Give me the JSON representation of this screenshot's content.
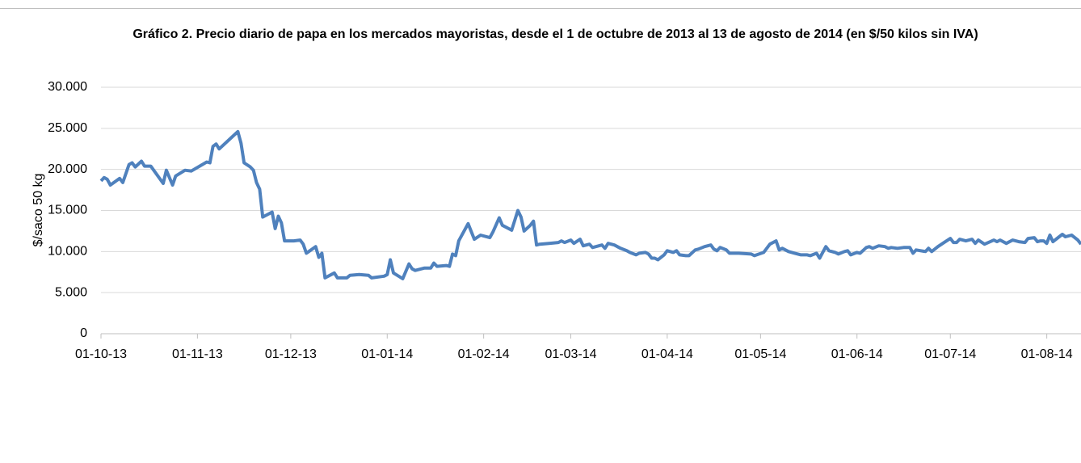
{
  "chart_data": {
    "type": "line",
    "title": "Gráfico 2. Precio diario de papa en los mercados mayoristas, desde el 1 de octubre de 2013 al 13 de agosto de 2014 (en $/50 kilos sin IVA)",
    "y_label": "$/saco  50 kg",
    "grid": true,
    "xlim": [
      "01-10-13",
      "12-08-14"
    ],
    "xticks": [
      "01-10-13",
      "01-11-13",
      "01-12-13",
      "01-01-14",
      "01-02-14",
      "01-03-14",
      "01-04-14",
      "01-05-14",
      "01-06-14",
      "01-07-14",
      "01-08-14"
    ],
    "ylim": [
      0,
      30000
    ],
    "yticks": [
      0,
      {
        "value": 5000,
        "label": "5.000"
      },
      {
        "value": 10000,
        "label": "10.000"
      },
      {
        "value": 15000,
        "label": "15.000"
      },
      {
        "value": 20000,
        "label": "20.000"
      },
      {
        "value": 25000,
        "label": "25.000"
      },
      {
        "value": 30000,
        "label": "30.000"
      }
    ],
    "color": "#4f81bd",
    "x": [
      "01-10-13",
      "02-10-13",
      "03-10-13",
      "04-10-13",
      "07-10-13",
      "08-10-13",
      "10-10-13",
      "11-10-13",
      "12-10-13",
      "14-10-13",
      "15-10-13",
      "17-10-13",
      "21-10-13",
      "22-10-13",
      "24-10-13",
      "25-10-13",
      "28-10-13",
      "30-10-13",
      "04-11-13",
      "05-11-13",
      "06-11-13",
      "07-11-13",
      "08-11-13",
      "12-11-13",
      "14-11-13",
      "15-11-13",
      "16-11-13",
      "18-11-13",
      "19-11-13",
      "20-11-13",
      "21-11-13",
      "22-11-13",
      "25-11-13",
      "26-11-13",
      "27-11-13",
      "28-11-13",
      "29-11-13",
      "02-12-13",
      "04-12-13",
      "05-12-13",
      "06-12-13",
      "09-12-13",
      "10-12-13",
      "11-12-13",
      "12-12-13",
      "15-12-13",
      "16-12-13",
      "19-12-13",
      "20-12-13",
      "23-12-13",
      "26-12-13",
      "27-12-13",
      "31-12-13",
      "01-01-14",
      "02-01-14",
      "03-01-14",
      "06-01-14",
      "08-01-14",
      "09-01-14",
      "10-01-14",
      "13-01-14",
      "15-01-14",
      "16-01-14",
      "17-01-14",
      "20-01-14",
      "21-01-14",
      "22-01-14",
      "23-01-14",
      "24-01-14",
      "27-01-14",
      "29-01-14",
      "31-01-14",
      "03-02-14",
      "04-02-14",
      "06-02-14",
      "07-02-14",
      "10-02-14",
      "12-02-14",
      "13-02-14",
      "14-02-14",
      "16-02-14",
      "17-02-14",
      "18-02-14",
      "19-02-14",
      "22-02-14",
      "25-02-14",
      "26-02-14",
      "27-02-14",
      "01-03-14",
      "02-03-14",
      "04-03-14",
      "05-03-14",
      "07-03-14",
      "08-03-14",
      "11-03-14",
      "12-03-14",
      "13-03-14",
      "15-03-14",
      "17-03-14",
      "19-03-14",
      "20-03-14",
      "22-03-14",
      "23-03-14",
      "25-03-14",
      "26-03-14",
      "27-03-14",
      "28-03-14",
      "29-03-14",
      "31-03-14",
      "01-04-14",
      "03-04-14",
      "04-04-14",
      "05-04-14",
      "07-04-14",
      "08-04-14",
      "10-04-14",
      "11-04-14",
      "13-04-14",
      "15-04-14",
      "16-04-14",
      "17-04-14",
      "18-04-14",
      "20-04-14",
      "21-04-14",
      "24-04-14",
      "28-04-14",
      "29-04-14",
      "02-05-14",
      "04-05-14",
      "06-05-14",
      "07-05-14",
      "08-05-14",
      "10-05-14",
      "12-05-14",
      "14-05-14",
      "15-05-14",
      "16-05-14",
      "17-05-14",
      "19-05-14",
      "20-05-14",
      "22-05-14",
      "23-05-14",
      "25-05-14",
      "26-05-14",
      "28-05-14",
      "29-05-14",
      "30-05-14",
      "01-06-14",
      "02-06-14",
      "04-06-14",
      "05-06-14",
      "06-06-14",
      "08-06-14",
      "10-06-14",
      "11-06-14",
      "12-06-14",
      "14-06-14",
      "16-06-14",
      "18-06-14",
      "19-06-14",
      "20-06-14",
      "23-06-14",
      "24-06-14",
      "25-06-14",
      "27-06-14",
      "29-06-14",
      "01-07-14",
      "02-07-14",
      "03-07-14",
      "04-07-14",
      "06-07-14",
      "08-07-14",
      "09-07-14",
      "10-07-14",
      "12-07-14",
      "15-07-14",
      "16-07-14",
      "17-07-14",
      "19-07-14",
      "21-07-14",
      "23-07-14",
      "25-07-14",
      "26-07-14",
      "28-07-14",
      "29-07-14",
      "30-07-14",
      "31-07-14",
      "01-08-14",
      "02-08-14",
      "03-08-14",
      "05-08-14",
      "06-08-14",
      "07-08-14",
      "09-08-14",
      "11-08-14",
      "12-08-14"
    ],
    "values": [
      18600,
      19000,
      18800,
      18100,
      18900,
      18400,
      20600,
      20800,
      20300,
      21000,
      20400,
      20400,
      18300,
      19900,
      18100,
      19200,
      19900,
      19800,
      20900,
      20800,
      22800,
      23100,
      22500,
      23900,
      24600,
      23200,
      20800,
      20300,
      19900,
      18400,
      17600,
      14200,
      14800,
      12800,
      14300,
      13500,
      11300,
      11300,
      11400,
      10900,
      9800,
      10600,
      9300,
      9800,
      6800,
      7400,
      6800,
      6800,
      7100,
      7200,
      7100,
      6800,
      7000,
      7200,
      9000,
      7400,
      6700,
      8500,
      7900,
      7700,
      8000,
      8000,
      8600,
      8200,
      8300,
      8200,
      9700,
      9500,
      11300,
      13400,
      11500,
      12000,
      11700,
      12400,
      14100,
      13200,
      12600,
      15000,
      14200,
      12500,
      13200,
      13700,
      10800,
      10900,
      11000,
      11100,
      11300,
      11100,
      11400,
      11000,
      11500,
      10700,
      10900,
      10500,
      10800,
      10400,
      11000,
      10800,
      10400,
      10100,
      9900,
      9600,
      9800,
      9900,
      9700,
      9200,
      9200,
      9000,
      9600,
      10100,
      9900,
      10100,
      9600,
      9500,
      9500,
      10200,
      10300,
      10600,
      10800,
      10300,
      10100,
      10500,
      10200,
      9800,
      9800,
      9700,
      9500,
      9900,
      10900,
      11300,
      10200,
      10400,
      10000,
      9800,
      9600,
      9600,
      9600,
      9500,
      9800,
      9200,
      10600,
      10100,
      9900,
      9700,
      10000,
      10100,
      9600,
      9900,
      9800,
      10500,
      10600,
      10400,
      10700,
      10600,
      10400,
      10500,
      10400,
      10500,
      10500,
      9800,
      10200,
      10000,
      10400,
      10000,
      10600,
      11100,
      11600,
      11100,
      11100,
      11500,
      11300,
      11500,
      11000,
      11400,
      10900,
      11400,
      11200,
      11400,
      11000,
      11400,
      11200,
      11100,
      11600,
      11700,
      11200,
      11300,
      11300,
      11000,
      12000,
      11200,
      11800,
      12100,
      11800,
      12000,
      11400,
      10900
    ]
  }
}
